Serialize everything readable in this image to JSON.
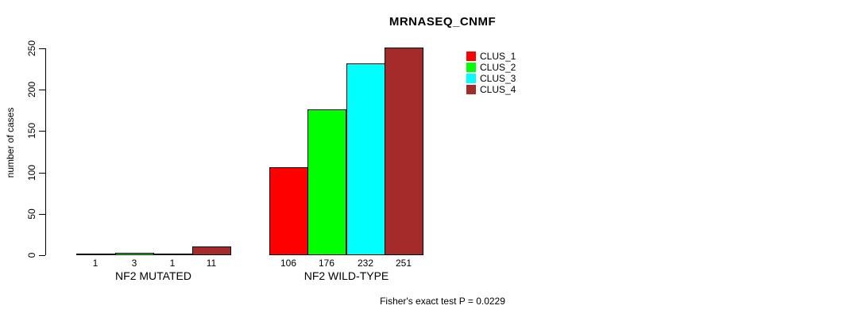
{
  "title": "MRNASEQ_CNMF",
  "ylabel": "number of cases",
  "caption": "Fisher's exact test P = 0.0229",
  "legend": {
    "position": "top-right",
    "items": [
      {
        "label": "CLUS_1",
        "color": "#FF0000"
      },
      {
        "label": "CLUS_2",
        "color": "#00FF00"
      },
      {
        "label": "CLUS_3",
        "color": "#00FFFF"
      },
      {
        "label": "CLUS_4",
        "color": "#A52A2A"
      }
    ]
  },
  "chart_data": {
    "type": "bar",
    "title": "MRNASEQ_CNMF",
    "xlabel": "",
    "ylabel": "number of cases",
    "ylim": [
      0,
      250
    ],
    "yticks": [
      0,
      50,
      100,
      150,
      200,
      250
    ],
    "grid": false,
    "legend_position": "top-right",
    "categories": [
      "NF2 MUTATED",
      "NF2 WILD-TYPE"
    ],
    "series": [
      {
        "name": "CLUS_1",
        "color": "#FF0000",
        "values": [
          1,
          106
        ]
      },
      {
        "name": "CLUS_2",
        "color": "#00FF00",
        "values": [
          3,
          176
        ]
      },
      {
        "name": "CLUS_3",
        "color": "#00FFFF",
        "values": [
          1,
          232
        ]
      },
      {
        "name": "CLUS_4",
        "color": "#A52A2A",
        "values": [
          11,
          251
        ]
      }
    ],
    "bar_value_labels": true,
    "annotation": "Fisher's exact test P = 0.0229"
  }
}
